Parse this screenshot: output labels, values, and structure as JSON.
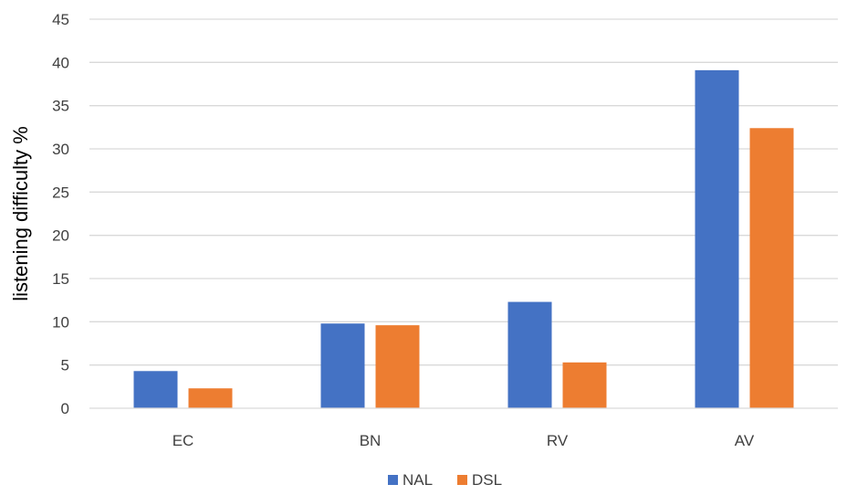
{
  "chart_data": {
    "type": "bar",
    "title": "",
    "xlabel": "",
    "ylabel": "listening difficulty %",
    "categories": [
      "EC",
      "BN",
      "RV",
      "AV"
    ],
    "series": [
      {
        "name": "NAL",
        "color": "#4472C4",
        "values": [
          4.3,
          9.8,
          12.3,
          39.1
        ]
      },
      {
        "name": "DSL",
        "color": "#ED7D31",
        "values": [
          2.3,
          9.6,
          5.3,
          32.4
        ]
      }
    ],
    "ylim": [
      0,
      45
    ],
    "yticks": [
      0,
      5,
      10,
      15,
      20,
      25,
      30,
      35,
      40,
      45
    ],
    "grid": true,
    "legend_position": "bottom-center"
  }
}
